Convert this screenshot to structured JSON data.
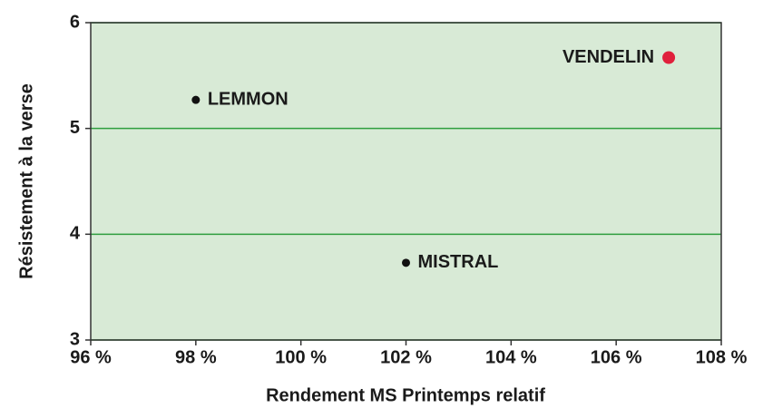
{
  "chart_data": {
    "type": "scatter",
    "xlabel": "Rendement MS Printemps relatif",
    "ylabel": "Résistement à la verse",
    "labels": [
      "LEMMON",
      "MISTRAL",
      "VENDELIN"
    ],
    "x": [
      98,
      102,
      107
    ],
    "values": [
      5.27,
      3.73,
      5.67
    ],
    "colors": [
      "#111111",
      "#111111",
      "#e0203c"
    ],
    "xlim": [
      96,
      108
    ],
    "xticks": [
      {
        "value": 96,
        "label": "96 %"
      },
      {
        "value": 98,
        "label": "98 %"
      },
      {
        "value": 100,
        "label": "100 %"
      },
      {
        "value": 102,
        "label": "102 %"
      },
      {
        "value": 104,
        "label": "104 %"
      },
      {
        "value": 106,
        "label": "106 %"
      },
      {
        "value": 108,
        "label": "108 %"
      }
    ],
    "ylim": [
      3,
      6
    ],
    "yticks": [
      3,
      4,
      5,
      6
    ],
    "grid": true,
    "grid_color": "#2e9e3e",
    "background": "#d8ead6"
  }
}
